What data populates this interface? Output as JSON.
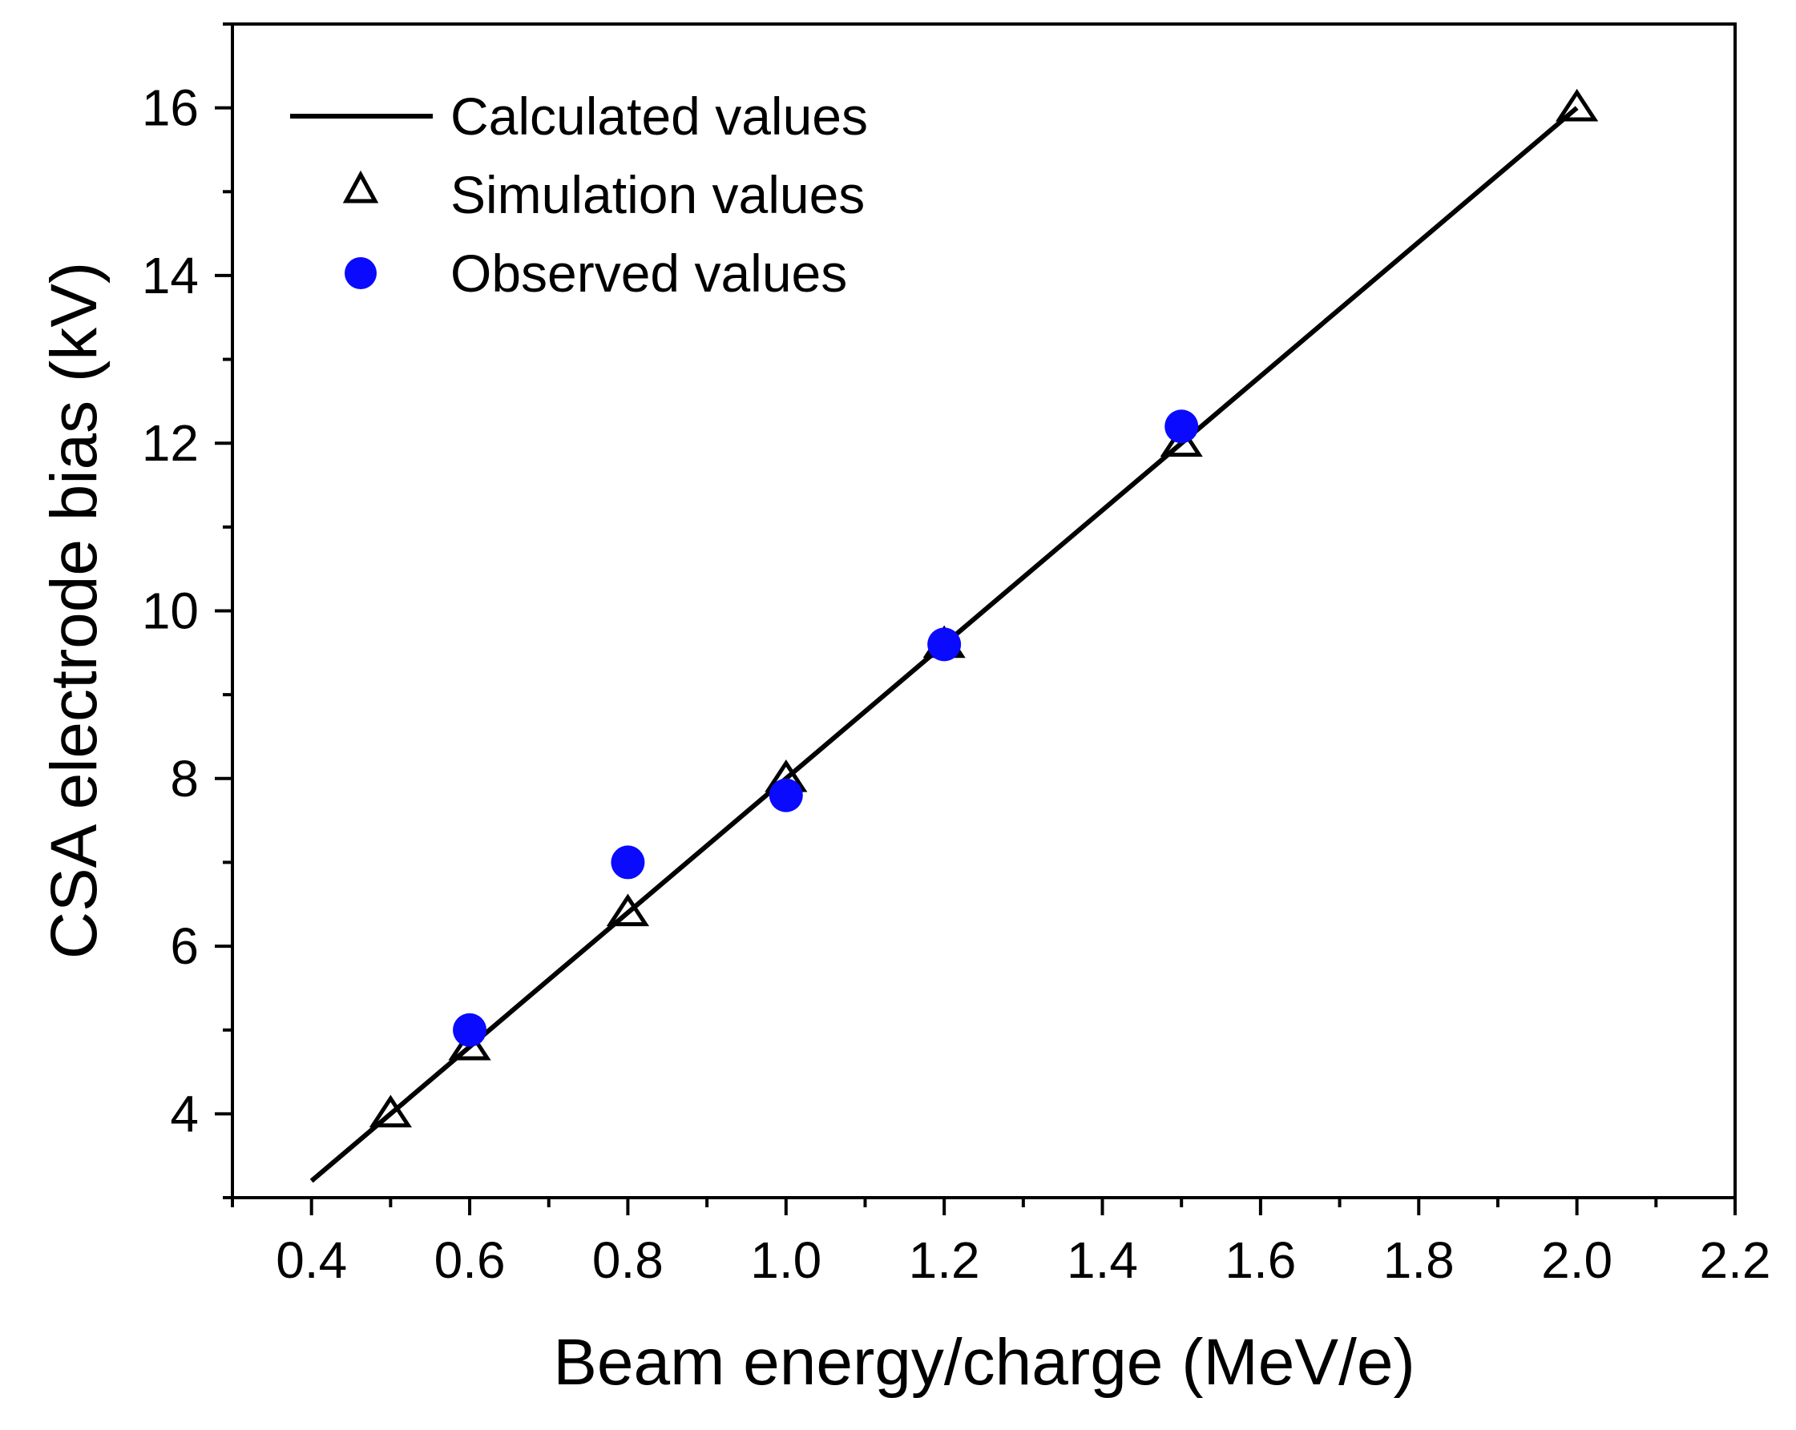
{
  "chart_data": {
    "type": "scatter",
    "title": "",
    "xlabel": "Beam energy/charge (MeV/e)",
    "ylabel": "CSA electrode bias (kV)",
    "xlim": [
      0.3,
      2.2
    ],
    "ylim": [
      3.0,
      17.0
    ],
    "x_ticks": [
      "0.4",
      "0.6",
      "0.8",
      "1.0",
      "1.2",
      "1.4",
      "1.6",
      "1.8",
      "2.0",
      "2.2"
    ],
    "x_tick_values": [
      0.4,
      0.6,
      0.8,
      1.0,
      1.2,
      1.4,
      1.6,
      1.8,
      2.0,
      2.2
    ],
    "y_ticks": [
      "4",
      "6",
      "8",
      "10",
      "12",
      "14",
      "16"
    ],
    "y_tick_values": [
      4,
      6,
      8,
      10,
      12,
      14,
      16
    ],
    "legend_position": "top-left",
    "series": [
      {
        "name": "Calculated values",
        "kind": "line",
        "color": "#000000",
        "x": [
          0.4,
          2.0
        ],
        "y": [
          3.2,
          16.0
        ]
      },
      {
        "name": "Simulation values",
        "kind": "triangle",
        "color": "#000000",
        "x": [
          0.5,
          0.6,
          0.8,
          1.0,
          1.2,
          1.5,
          2.0
        ],
        "y": [
          4.0,
          4.8,
          6.4,
          8.0,
          9.6,
          12.0,
          16.0
        ]
      },
      {
        "name": "Observed values",
        "kind": "circle",
        "color": "#0a0aff",
        "x": [
          0.6,
          0.8,
          1.0,
          1.2,
          1.5
        ],
        "y": [
          5.0,
          7.0,
          7.8,
          9.6,
          12.2
        ]
      }
    ]
  }
}
